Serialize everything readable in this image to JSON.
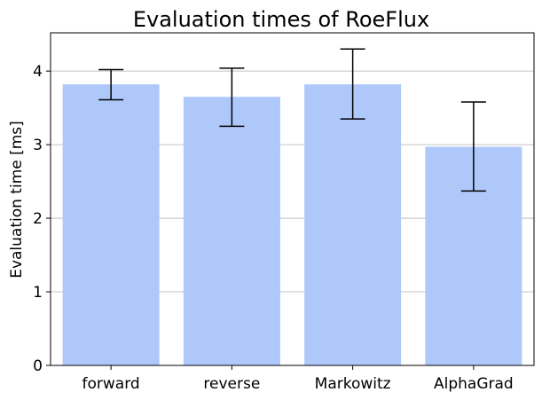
{
  "chart_data": {
    "type": "bar",
    "title": "Evaluation times of RoeFlux",
    "xlabel": "",
    "ylabel": "Evaluation time [ms]",
    "categories": [
      "forward",
      "reverse",
      "Markowitz",
      "AlphaGrad"
    ],
    "values": [
      3.82,
      3.65,
      3.82,
      2.97
    ],
    "error_low": [
      3.61,
      3.25,
      3.35,
      2.37
    ],
    "error_high": [
      4.02,
      4.04,
      4.3,
      3.58
    ],
    "ylim": [
      0,
      4.52
    ],
    "yticks": [
      0,
      1,
      2,
      3,
      4
    ],
    "ytick_labels": [
      "0",
      "1",
      "2",
      "3",
      "4"
    ],
    "grid": "y",
    "colors": {
      "bar": "#aec8fa",
      "error_bar": "#000000",
      "grid": "#b0b0b0",
      "axis": "#000000"
    }
  }
}
